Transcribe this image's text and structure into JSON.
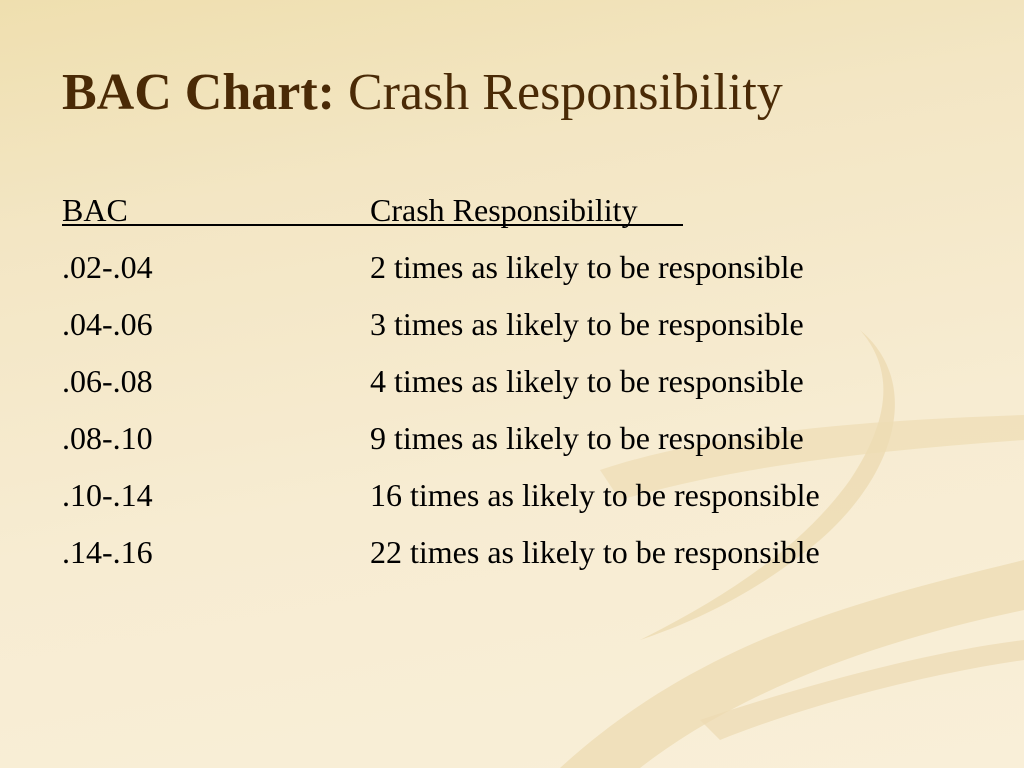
{
  "slide": {
    "title_bold": "BAC Chart:",
    "title_rest": " Crash Responsibility"
  },
  "table": {
    "headers": {
      "bac": "BAC",
      "responsibility": "Crash Responsibility"
    },
    "rows": [
      {
        "bac": ".02-.04",
        "responsibility": "2 times as likely to be responsible"
      },
      {
        "bac": ".04-.06",
        "responsibility": "3 times as likely to be responsible"
      },
      {
        "bac": ".06-.08",
        "responsibility": "4 times as likely to be responsible"
      },
      {
        "bac": ".08-.10",
        "responsibility": "9 times as likely to be responsible"
      },
      {
        "bac": ".10-.14",
        "responsibility": "16 times as likely to be responsible"
      },
      {
        "bac": ".14-.16",
        "responsibility": "22 times as likely to be responsible"
      }
    ]
  },
  "colors": {
    "title": "#4a2a06",
    "body_text": "#000000",
    "background": "#f7ecd2",
    "swirl": "#e8d9b5"
  }
}
